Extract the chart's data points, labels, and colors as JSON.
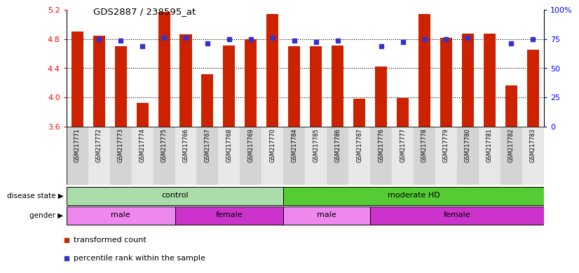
{
  "title": "GDS2887 / 238595_at",
  "samples": [
    "GSM217771",
    "GSM217772",
    "GSM217773",
    "GSM217774",
    "GSM217775",
    "GSM217766",
    "GSM217767",
    "GSM217768",
    "GSM217769",
    "GSM217770",
    "GSM217784",
    "GSM217785",
    "GSM217786",
    "GSM217787",
    "GSM217776",
    "GSM217777",
    "GSM217778",
    "GSM217779",
    "GSM217780",
    "GSM217781",
    "GSM217782",
    "GSM217783"
  ],
  "bar_values": [
    4.9,
    4.85,
    4.7,
    3.93,
    5.17,
    4.86,
    4.32,
    4.71,
    4.8,
    5.14,
    4.7,
    4.7,
    4.71,
    3.98,
    4.42,
    3.99,
    5.14,
    4.82,
    4.87,
    4.87,
    4.17,
    4.65
  ],
  "dot_values": [
    null,
    4.8,
    4.783,
    4.7,
    4.82,
    4.82,
    4.743,
    4.8,
    4.8,
    4.82,
    4.783,
    4.757,
    4.783,
    null,
    4.7,
    4.757,
    4.8,
    4.8,
    4.82,
    null,
    4.743,
    4.8
  ],
  "ylim_left": [
    3.6,
    5.2
  ],
  "ylim_right": [
    0,
    100
  ],
  "yticks_left": [
    3.6,
    4.0,
    4.4,
    4.8,
    5.2
  ],
  "yticks_right": [
    0,
    25,
    50,
    75,
    100
  ],
  "hlines": [
    4.0,
    4.4,
    4.8
  ],
  "bar_color": "#cc2200",
  "dot_color": "#3333cc",
  "bar_width": 0.55,
  "xtick_bg_even": "#d4d4d4",
  "xtick_bg_odd": "#e8e8e8",
  "disease_state_groups": [
    {
      "label": "control",
      "start": 0,
      "end": 10,
      "color": "#aaddaa"
    },
    {
      "label": "moderate HD",
      "start": 10,
      "end": 22,
      "color": "#55cc33"
    }
  ],
  "gender_groups": [
    {
      "label": "male",
      "start": 0,
      "end": 5,
      "color": "#ee88ee"
    },
    {
      "label": "female",
      "start": 5,
      "end": 10,
      "color": "#cc33cc"
    },
    {
      "label": "male",
      "start": 10,
      "end": 14,
      "color": "#ee88ee"
    },
    {
      "label": "female",
      "start": 14,
      "end": 22,
      "color": "#cc33cc"
    }
  ],
  "legend_labels": [
    "transformed count",
    "percentile rank within the sample"
  ],
  "legend_colors": [
    "#cc2200",
    "#3333cc"
  ],
  "left_label_disease": "disease state",
  "left_label_gender": "gender"
}
